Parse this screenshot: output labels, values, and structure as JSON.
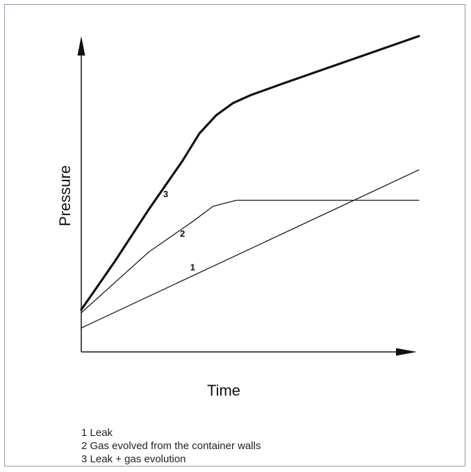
{
  "chart_data": {
    "type": "line",
    "xlabel": "Time",
    "ylabel": "Pressure",
    "xlim": [
      0,
      100
    ],
    "ylim": [
      0,
      100
    ],
    "grid": false,
    "axis_ticks": false,
    "series": [
      {
        "label": "1",
        "stroke": "#1a1a1a",
        "emphasis": "thin",
        "x": [
          0,
          100
        ],
        "y": [
          4,
          56
        ],
        "label_at": [
          33,
          23
        ]
      },
      {
        "label": "2",
        "stroke": "#1a1a1a",
        "emphasis": "thin",
        "x": [
          0,
          20,
          33,
          39,
          46,
          56,
          100
        ],
        "y": [
          9,
          29,
          39,
          44,
          46,
          46,
          46
        ],
        "label_at": [
          30,
          34
        ]
      },
      {
        "label": "3",
        "stroke": "#111111",
        "emphasis": "bold",
        "x": [
          0,
          10,
          20,
          30,
          35,
          40,
          45,
          50,
          55,
          60,
          100
        ],
        "y": [
          10,
          26,
          43,
          59,
          68,
          74,
          78,
          80.5,
          82.5,
          84.5,
          100
        ],
        "label_at": [
          25,
          47
        ]
      }
    ],
    "legend": [
      "1 Leak",
      "2 Gas evolved from the container walls",
      "3 Leak + gas evolution"
    ]
  }
}
